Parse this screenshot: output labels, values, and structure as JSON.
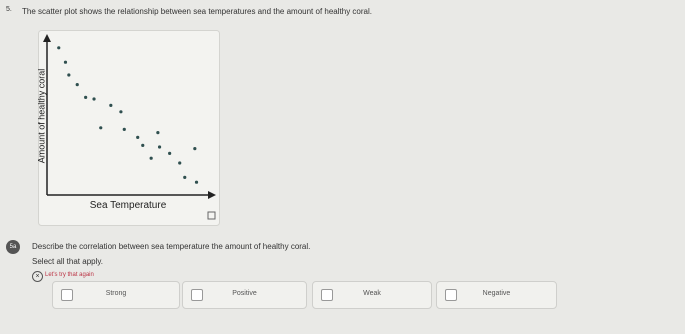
{
  "question": {
    "number": "5.",
    "text": "The scatter plot shows the relationship between sea temperatures and the amount of healthy coral."
  },
  "chart_data": {
    "type": "scatter",
    "xlabel": "Sea Temperature",
    "ylabel": "Amount of healthy coral",
    "x": [
      0.7,
      1.1,
      1.3,
      1.8,
      2.3,
      2.8,
      3.8,
      4.4,
      3.2,
      4.6,
      5.4,
      5.7,
      6.6,
      6.7,
      7.3,
      6.2,
      7.9,
      8.8,
      8.2,
      8.9
    ],
    "values": [
      9.2,
      8.3,
      7.5,
      6.9,
      6.1,
      6.0,
      5.6,
      5.2,
      4.2,
      4.1,
      3.6,
      3.1,
      3.9,
      3.0,
      2.6,
      2.3,
      2.0,
      2.9,
      1.1,
      0.8
    ],
    "color": "#2f4f4f",
    "xlim": [
      0,
      10
    ],
    "ylim": [
      0,
      10
    ]
  },
  "part": {
    "badge": "5a",
    "prompt": "Describe the correlation between sea temperature the amount of healthy coral.",
    "instruction": "Select all that apply.",
    "feedback": "Let's try that again",
    "options": [
      "Strong",
      "Positive",
      "Weak",
      "Negative"
    ]
  }
}
